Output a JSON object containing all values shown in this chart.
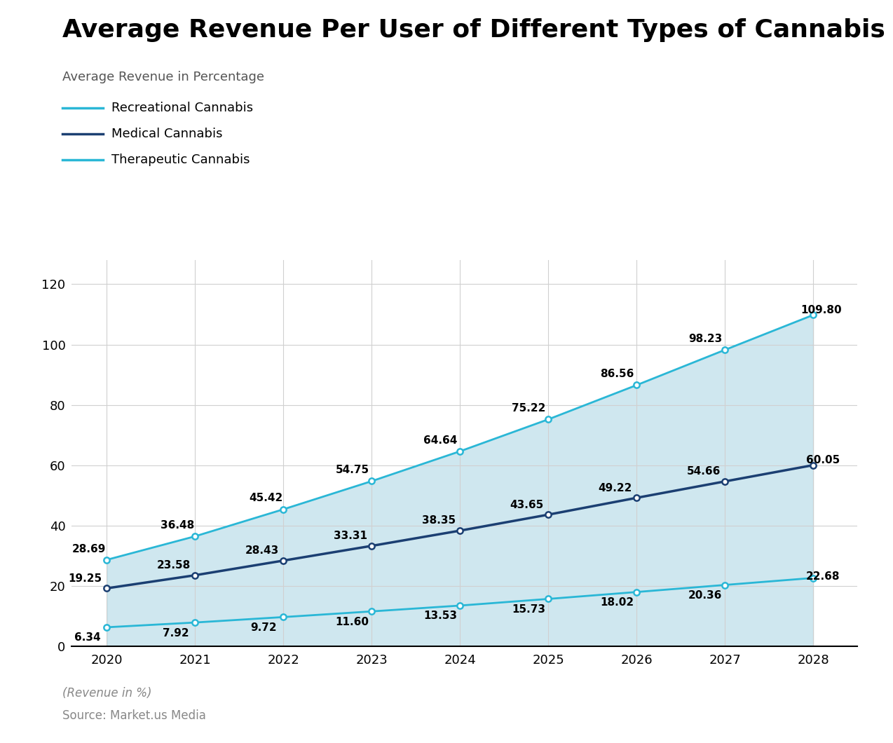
{
  "title": "Average Revenue Per User of Different Types of Cannabis",
  "subtitle": "Average Revenue in Percentage",
  "years": [
    2020,
    2021,
    2022,
    2023,
    2024,
    2025,
    2026,
    2027,
    2028
  ],
  "recreational": [
    28.69,
    36.48,
    45.42,
    54.75,
    64.64,
    75.22,
    86.56,
    98.23,
    109.8
  ],
  "medical": [
    19.25,
    23.58,
    28.43,
    33.31,
    38.35,
    43.65,
    49.22,
    54.66,
    60.05
  ],
  "therapeutic": [
    6.34,
    7.92,
    9.72,
    11.6,
    13.53,
    15.73,
    18.02,
    20.36,
    22.68
  ],
  "recreational_color": "#2ab7d6",
  "medical_color": "#1b3f72",
  "therapeutic_color": "#2ab7d6",
  "fill_top_color": "#a8d5e2",
  "fill_bottom_color": "#c8e8f0",
  "ylim": [
    0,
    128
  ],
  "yticks": [
    0,
    20,
    40,
    60,
    80,
    100,
    120
  ],
  "footer_line1": "(Revenue in %)",
  "footer_line2": "Source: Market.us Media",
  "background_color": "#ffffff",
  "grid_color": "#d0d0d0",
  "title_fontsize": 26,
  "subtitle_fontsize": 13,
  "legend_fontsize": 13,
  "tick_fontsize": 13,
  "annotation_fontsize": 11
}
